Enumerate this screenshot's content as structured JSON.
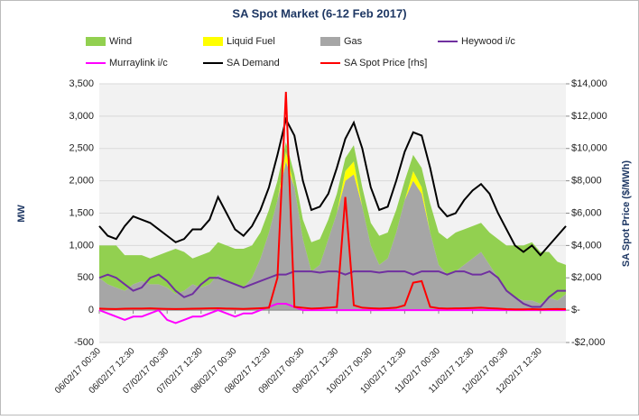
{
  "chart_data": {
    "type": "combo",
    "title": "SA Spot Market (6-12 Feb 2017)",
    "ylabel": "MW",
    "y2label": "SA Spot Price ($/MWh)",
    "categories": [
      "06/02/17 00:30",
      null,
      null,
      null,
      "06/02/17 12:30",
      null,
      null,
      null,
      "07/02/17 00:30",
      null,
      null,
      null,
      "07/02/17 12:30",
      null,
      null,
      null,
      "08/02/17 00:30",
      null,
      null,
      null,
      "08/02/17 12:30",
      null,
      null,
      null,
      "09/02/17 00:30",
      null,
      null,
      null,
      "09/02/17 12:30",
      null,
      null,
      null,
      "10/02/17 00:30",
      null,
      null,
      null,
      "10/02/17 12:30",
      null,
      null,
      null,
      "11/02/17 00:30",
      null,
      null,
      null,
      "11/02/17 12:30",
      null,
      null,
      null,
      "12/02/17 00:30",
      null,
      null,
      null,
      "12/02/17 12:30",
      null,
      null,
      null
    ],
    "ylim": [
      -500,
      3500
    ],
    "yticks": [
      -500,
      0,
      500,
      {
        "value": 1000,
        "label": "1,000"
      },
      {
        "value": 1500,
        "label": "1,500"
      },
      {
        "value": 2000,
        "label": "2,000"
      },
      {
        "value": 2500,
        "label": "2,500"
      },
      {
        "value": 3000,
        "label": "3,000"
      },
      {
        "value": 3500,
        "label": "3,500"
      }
    ],
    "y2lim": [
      -2000,
      14000
    ],
    "y2ticks": [
      {
        "value": -2000,
        "label": "-$2,000"
      },
      {
        "value": 0,
        "label": "$-"
      },
      {
        "value": 2000,
        "label": "$2,000"
      },
      {
        "value": 4000,
        "label": "$4,000"
      },
      {
        "value": 6000,
        "label": "$6,000"
      },
      {
        "value": 8000,
        "label": "$8,000"
      },
      {
        "value": 10000,
        "label": "$10,000"
      },
      {
        "value": 12000,
        "label": "$12,000"
      },
      {
        "value": 14000,
        "label": "$14,000"
      }
    ],
    "grid": true,
    "legend": "top",
    "series": [
      {
        "name": "Wind",
        "kind": "stacked-area",
        "color": "#92d050",
        "values": [
          500,
          600,
          650,
          550,
          450,
          400,
          400,
          450,
          550,
          700,
          600,
          400,
          500,
          500,
          500,
          550,
          550,
          600,
          500,
          400,
          350,
          300,
          150,
          200,
          300,
          450,
          400,
          300,
          300,
          200,
          250,
          300,
          350,
          450,
          400,
          350,
          300,
          250,
          300,
          450,
          500,
          550,
          600,
          550,
          500,
          450,
          500,
          600,
          700,
          800,
          850,
          900,
          800,
          700,
          600,
          450
        ]
      },
      {
        "name": "Liquid Fuel",
        "kind": "stacked-area",
        "color": "#ffff00",
        "values": [
          0,
          0,
          0,
          0,
          0,
          0,
          0,
          0,
          0,
          0,
          0,
          0,
          0,
          0,
          0,
          0,
          0,
          0,
          0,
          0,
          0,
          0,
          150,
          0,
          0,
          0,
          0,
          0,
          0,
          150,
          200,
          0,
          0,
          0,
          0,
          0,
          0,
          150,
          100,
          0,
          0,
          0,
          0,
          0,
          0,
          0,
          0,
          0,
          0,
          0,
          0,
          0,
          0,
          0,
          0,
          0
        ]
      },
      {
        "name": "Gas",
        "kind": "stacked-area",
        "color": "#a6a6a6",
        "values": [
          500,
          400,
          350,
          300,
          400,
          450,
          400,
          400,
          350,
          250,
          300,
          400,
          350,
          400,
          550,
          450,
          400,
          350,
          500,
          800,
          1200,
          1700,
          2300,
          1900,
          1100,
          600,
          700,
          1100,
          1500,
          2000,
          2100,
          1600,
          1000,
          700,
          800,
          1200,
          1700,
          2000,
          1800,
          1200,
          700,
          550,
          600,
          700,
          800,
          900,
          700,
          500,
          300,
          200,
          150,
          150,
          100,
          200,
          150,
          250
        ]
      },
      {
        "name": "Heywood i/c",
        "kind": "line",
        "color": "#7030a0",
        "values": [
          500,
          550,
          500,
          400,
          300,
          350,
          500,
          550,
          450,
          300,
          200,
          250,
          400,
          500,
          500,
          450,
          400,
          350,
          400,
          450,
          500,
          550,
          550,
          600,
          600,
          600,
          580,
          600,
          600,
          550,
          600,
          600,
          600,
          580,
          600,
          600,
          600,
          550,
          600,
          600,
          600,
          550,
          600,
          600,
          550,
          550,
          600,
          500,
          300,
          200,
          100,
          50,
          50,
          200,
          300,
          300
        ]
      },
      {
        "name": "Murraylink i/c",
        "kind": "line",
        "color": "#ff00ff",
        "values": [
          0,
          -50,
          -100,
          -150,
          -100,
          -100,
          -50,
          0,
          -150,
          -200,
          -150,
          -100,
          -100,
          -50,
          0,
          -50,
          -100,
          -50,
          -50,
          0,
          50,
          100,
          100,
          50,
          0,
          0,
          0,
          0,
          0,
          0,
          0,
          0,
          0,
          0,
          0,
          0,
          0,
          0,
          0,
          0,
          0,
          0,
          0,
          0,
          0,
          0,
          0,
          0,
          0,
          0,
          0,
          0,
          0,
          0,
          0,
          0
        ]
      },
      {
        "name": "SA Demand",
        "kind": "line",
        "color": "#000000",
        "values": [
          1300,
          1150,
          1100,
          1300,
          1450,
          1400,
          1350,
          1250,
          1150,
          1050,
          1100,
          1250,
          1250,
          1400,
          1750,
          1500,
          1250,
          1150,
          1300,
          1550,
          1900,
          2400,
          2950,
          2700,
          2000,
          1550,
          1600,
          1800,
          2200,
          2650,
          2900,
          2500,
          1900,
          1550,
          1600,
          2000,
          2450,
          2750,
          2700,
          2200,
          1600,
          1450,
          1500,
          1700,
          1850,
          1950,
          1800,
          1500,
          1250,
          1000,
          900,
          1000,
          850,
          1000,
          1150,
          1300
        ]
      },
      {
        "name": "SA Spot Price [rhs]",
        "kind": "line",
        "axis": "y2",
        "color": "#ff0000",
        "values": [
          100,
          80,
          70,
          90,
          100,
          100,
          110,
          90,
          80,
          70,
          80,
          90,
          100,
          110,
          120,
          100,
          90,
          80,
          100,
          120,
          150,
          2000,
          13500,
          200,
          150,
          100,
          120,
          150,
          200,
          7000,
          300,
          150,
          120,
          100,
          120,
          150,
          300,
          1700,
          1800,
          200,
          120,
          100,
          110,
          120,
          130,
          150,
          120,
          100,
          60,
          50,
          50,
          60,
          50,
          60,
          70,
          60
        ]
      }
    ]
  }
}
